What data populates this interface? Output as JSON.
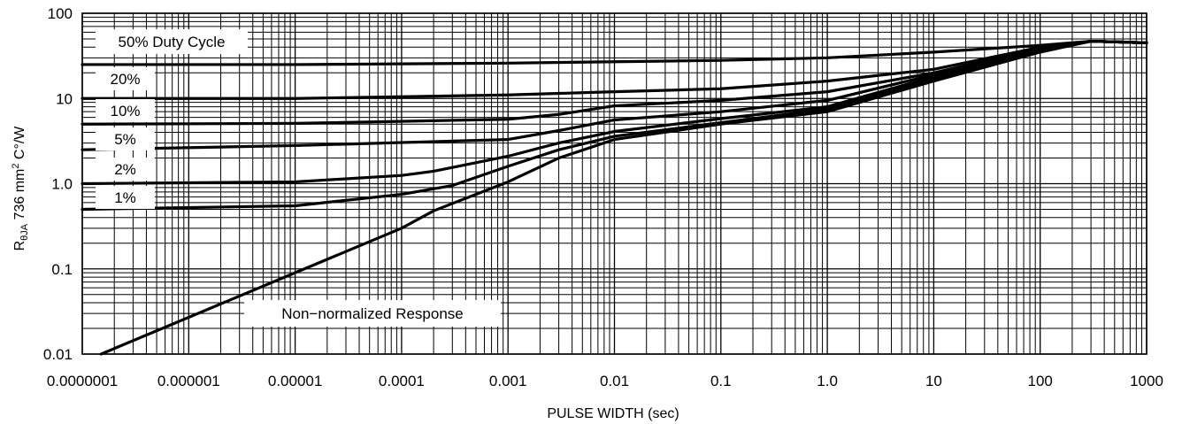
{
  "chart_data": {
    "type": "line",
    "xlabel": "PULSE WIDTH (sec)",
    "ylabel": {
      "prefix": "R",
      "subscript": "θJA",
      "middle": " 736 mm",
      "superscript": "2",
      "suffix": " C°/W"
    },
    "x_scale": "log",
    "y_scale": "log",
    "xlim": [
      1e-07,
      1000
    ],
    "ylim": [
      0.01,
      100
    ],
    "grid": true,
    "x_tick_labels": [
      "0.0000001",
      "0.000001",
      "0.00001",
      "0.0001",
      "0.001",
      "0.01",
      "0.1",
      "1.0",
      "10",
      "100",
      "1000"
    ],
    "y_tick_labels": [
      "0.01",
      "0.1",
      "1.0",
      "10",
      "100"
    ],
    "line_color": "#000000",
    "series": [
      {
        "label": "50% Duty Cycle",
        "x": [
          1e-07,
          1e-05,
          0.001,
          0.01,
          0.1,
          1,
          10,
          100,
          300,
          1000
        ],
        "y": [
          25,
          25,
          26,
          27,
          28,
          30,
          35,
          42,
          47,
          45
        ]
      },
      {
        "label": "20%",
        "x": [
          1e-07,
          1e-05,
          0.001,
          0.01,
          0.1,
          1,
          10,
          100,
          300,
          1000
        ],
        "y": [
          10,
          10,
          11,
          12,
          13,
          16,
          22,
          40,
          47,
          45
        ]
      },
      {
        "label": "10%",
        "x": [
          1e-07,
          1e-05,
          0.001,
          0.003,
          0.01,
          0.1,
          1,
          10,
          100,
          300,
          1000
        ],
        "y": [
          5,
          5.1,
          5.7,
          6.5,
          8.2,
          9.5,
          12,
          20,
          39,
          47,
          45
        ]
      },
      {
        "label": "5%",
        "x": [
          1e-07,
          1e-05,
          0.001,
          0.003,
          0.01,
          0.1,
          1,
          10,
          100,
          300,
          1000
        ],
        "y": [
          2.5,
          2.8,
          3.3,
          4.2,
          5.6,
          7,
          9.5,
          19,
          38,
          47,
          45
        ]
      },
      {
        "label": "2%",
        "x": [
          1e-07,
          1e-05,
          0.0001,
          0.0002,
          0.001,
          0.003,
          0.01,
          0.1,
          1,
          10,
          100,
          300,
          1000
        ],
        "y": [
          1,
          1.05,
          1.25,
          1.4,
          2.1,
          3,
          4.1,
          5.8,
          8,
          18,
          37,
          47,
          45
        ]
      },
      {
        "label": "1%",
        "x": [
          1e-07,
          1e-05,
          0.0001,
          0.0003,
          0.001,
          0.003,
          0.01,
          0.1,
          1,
          10,
          100,
          300,
          1000
        ],
        "y": [
          0.5,
          0.55,
          0.75,
          0.95,
          1.6,
          2.5,
          3.6,
          5.2,
          7.5,
          17,
          36,
          47,
          45
        ]
      },
      {
        "label": "Non−normalized Response",
        "x": [
          1.5e-07,
          1e-06,
          1e-05,
          0.0001,
          0.0002,
          0.001,
          0.003,
          0.01,
          0.1,
          1,
          10,
          100,
          300,
          1000
        ],
        "y": [
          0.01,
          0.027,
          0.09,
          0.3,
          0.48,
          1.05,
          2,
          3.3,
          5,
          7,
          16,
          35,
          47,
          45
        ]
      }
    ],
    "annotations": [
      "50% Duty Cycle",
      "20%",
      "10%",
      "5%",
      "2%",
      "1%",
      "Non−normalized Response"
    ]
  }
}
